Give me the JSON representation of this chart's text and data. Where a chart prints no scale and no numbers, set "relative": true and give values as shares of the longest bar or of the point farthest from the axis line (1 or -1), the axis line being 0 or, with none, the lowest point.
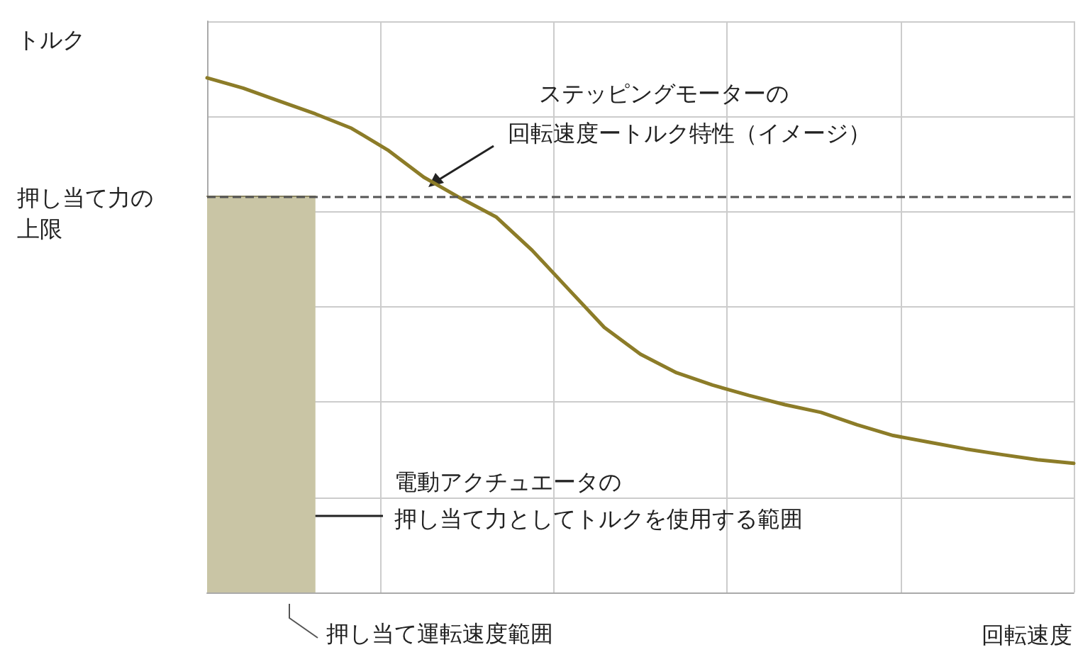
{
  "chart_data": {
    "type": "line",
    "relative": true,
    "xlabel": "回転速度",
    "grid": true,
    "marker": "none",
    "categories": [
      null,
      null,
      null,
      null,
      null,
      null,
      null,
      null,
      null,
      null,
      null,
      null,
      null,
      null,
      null,
      null,
      null,
      null,
      null,
      null,
      null,
      null,
      null,
      null,
      null
    ],
    "series": [
      {
        "color": "#8c7c28",
        "values": [
          1.0,
          0.98,
          0.955,
          0.93,
          0.902,
          0.86,
          0.807,
          0.767,
          0.73,
          0.665,
          0.59,
          0.515,
          0.463,
          0.427,
          0.403,
          0.383,
          0.365,
          0.35,
          0.326,
          0.305,
          0.292,
          0.279,
          0.268,
          0.258,
          0.251
        ]
      },
      {
        "type": "area",
        "color": "#c9c5a5",
        "values": [
          0.77,
          0.77,
          0.77,
          0.77,
          null,
          null,
          null,
          null,
          null,
          null,
          null,
          null,
          null,
          null,
          null,
          null,
          null,
          null,
          null,
          null,
          null,
          null,
          null,
          null,
          null
        ]
      }
    ],
    "ref_lines": [
      {
        "axis": "y",
        "value": 0.77,
        "label": "押し当て力の上限",
        "color": "#555555",
        "line_style": "dashed"
      }
    ],
    "annotations": [
      "トルク",
      "ステッピングモーターの",
      "回転速度ートルク特性（イメージ）",
      "電動アクチュエータの",
      "押し当て力としてトルクを使用する範囲",
      "押し当て運転速度範囲"
    ]
  }
}
